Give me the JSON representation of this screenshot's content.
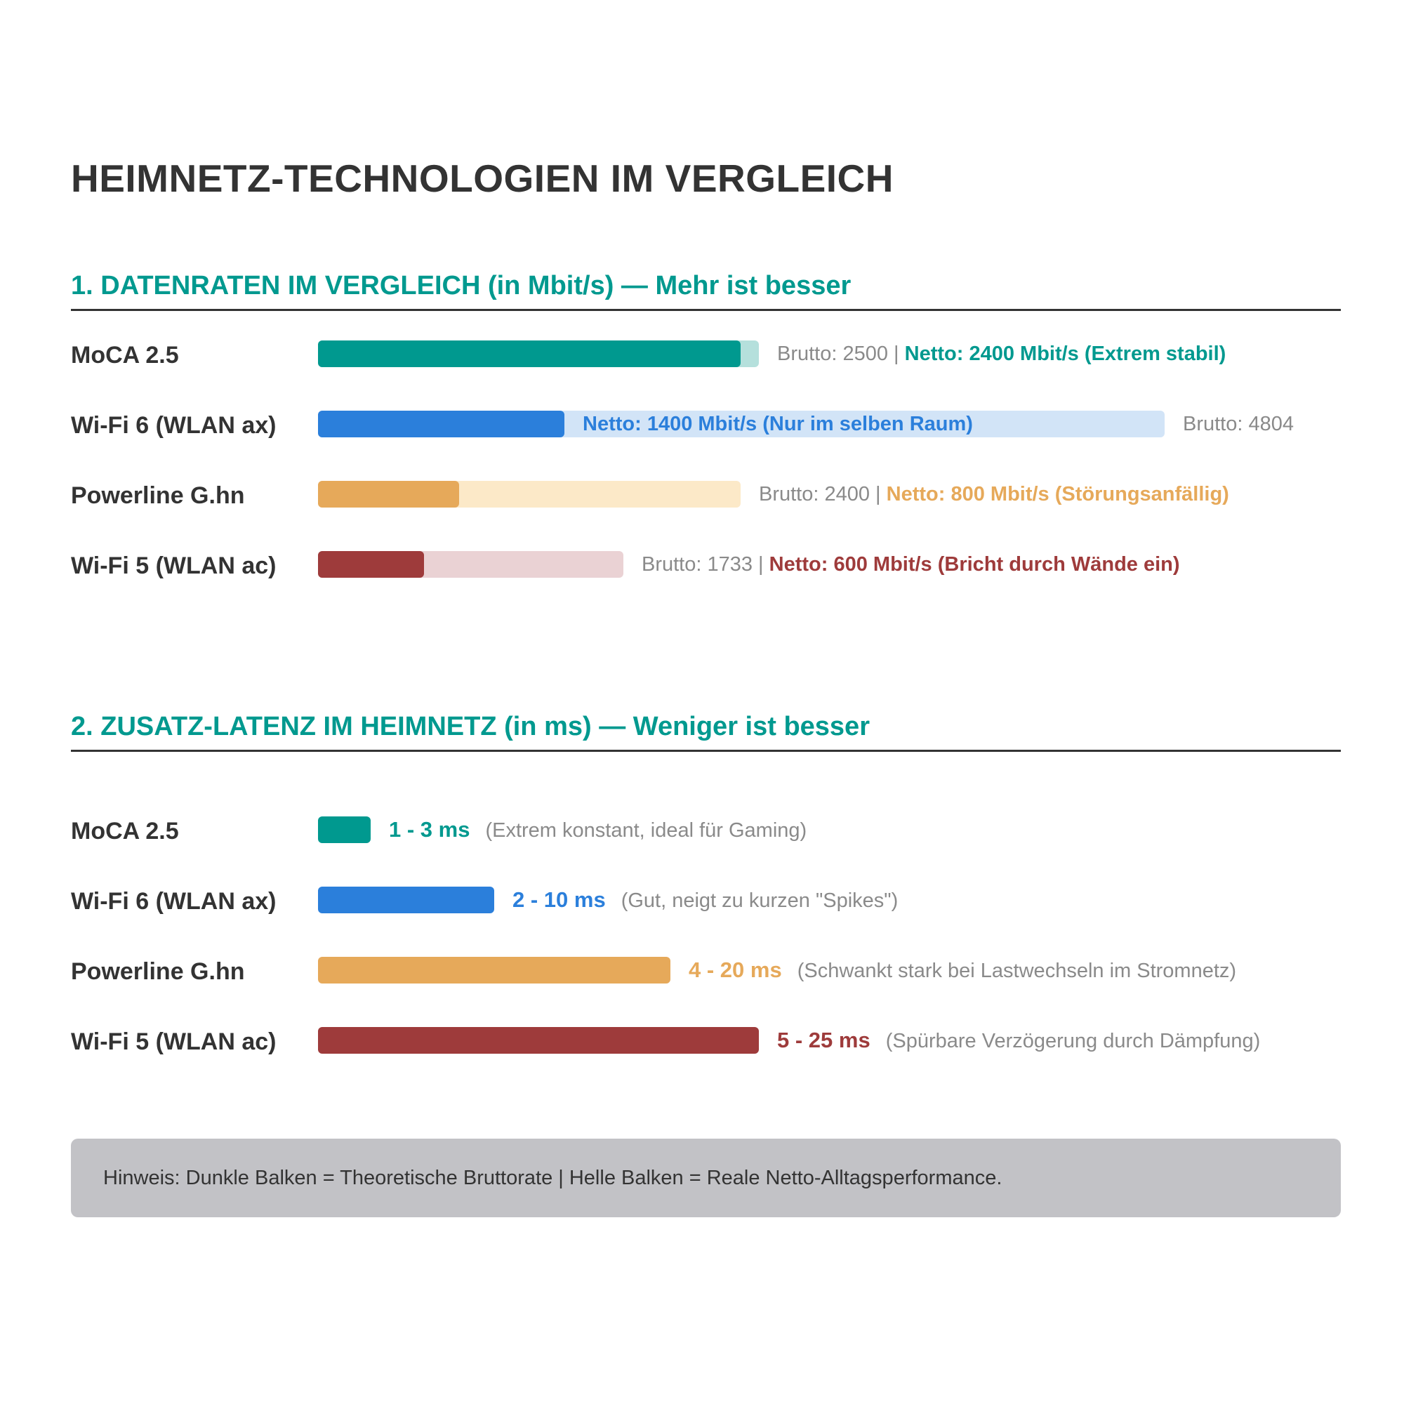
{
  "title": "HEIMNETZ-TECHNOLOGIEN IM VERGLEICH",
  "chart_data": [
    {
      "type": "bar",
      "title": "1. DATENRATEN IM VERGLEICH (in Mbit/s) — Mehr ist besser",
      "unit": "Mbit/s",
      "categories": [
        "MoCA 2.5",
        "Wi-Fi 6 (WLAN ax)",
        "Powerline G.hn",
        "Wi-Fi 5 (WLAN ac)"
      ],
      "series": [
        {
          "name": "Brutto",
          "values": [
            2500,
            4804,
            2400,
            1733
          ]
        },
        {
          "name": "Netto",
          "values": [
            2400,
            1400,
            800,
            600
          ]
        }
      ],
      "xlim": [
        0,
        4804
      ],
      "annotations": [
        {
          "gross_text": "Brutto: 2500 |",
          "net_text": "Netto: 2400 Mbit/s (Extrem stabil)"
        },
        {
          "gross_text": "Brutto: 4804",
          "net_text": "Netto: 1400 Mbit/s (Nur im selben Raum)"
        },
        {
          "gross_text": "Brutto: 2400 |",
          "net_text": "Netto: 800 Mbit/s (Störungsanfällig)"
        },
        {
          "gross_text": "Brutto: 1733 |",
          "net_text": "Netto: 600 Mbit/s (Bricht durch Wände ein)"
        }
      ],
      "colors": {
        "dark": [
          "#00998F",
          "#2B7FDB",
          "#E6A95A",
          "#9E3B3B"
        ],
        "light": [
          "#B5E0DC",
          "#D2E4F7",
          "#FCE9C8",
          "#EAD2D4"
        ]
      }
    },
    {
      "type": "bar",
      "title": "2. ZUSATZ-LATENZ IM HEIMNETZ (in ms) — Weniger ist besser",
      "unit": "ms",
      "categories": [
        "MoCA 2.5",
        "Wi-Fi 6 (WLAN ax)",
        "Powerline G.hn",
        "Wi-Fi 5 (WLAN ac)"
      ],
      "series": [
        {
          "values": [
            3,
            10,
            20,
            25
          ]
        }
      ],
      "xlim": [
        0,
        25
      ],
      "value_labels": [
        "1 - 3 ms",
        "2 - 10 ms",
        "4 - 20 ms",
        "5 - 25 ms"
      ],
      "notes": [
        "(Extrem konstant, ideal für Gaming)",
        "(Gut, neigt zu kurzen \"Spikes\")",
        "(Schwankt stark bei Lastwechseln im Stromnetz)",
        "(Spürbare Verzögerung durch Dämpfung)"
      ],
      "colors": [
        "#00998F",
        "#2B7FDB",
        "#E6A95A",
        "#9E3B3B"
      ]
    }
  ],
  "footnote": "Hinweis: Dunkle Balken = Theoretische Bruttorate | Helle Balken = Reale Netto-Alltagsperformance."
}
